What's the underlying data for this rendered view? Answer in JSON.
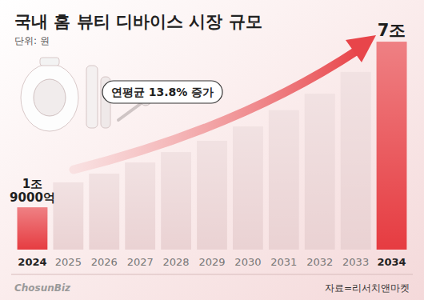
{
  "chart_data": {
    "type": "bar",
    "title": "국내 홈 뷰티 디바이스 시장 규모",
    "subtitle": "단위: 원",
    "annotation": "연평균 13.8% 증가",
    "categories": [
      "2024",
      "2025",
      "2026",
      "2027",
      "2028",
      "2029",
      "2030",
      "2031",
      "2032",
      "2033",
      "2034"
    ],
    "values": [
      1900000000000,
      2670000000000,
      2940000000000,
      3280000000000,
      3600000000000,
      3950000000000,
      4390000000000,
      4890000000000,
      5400000000000,
      6070000000000,
      7000000000000
    ],
    "value_labels": [
      "1조 9000억",
      null,
      null,
      null,
      null,
      null,
      null,
      null,
      null,
      null,
      "7조"
    ],
    "colors": [
      "#e63c41",
      "#ead2d3",
      "#ead2d3",
      "#ead2d3",
      "#ead2d3",
      "#ead2d3",
      "#ead2d3",
      "#ead2d3",
      "#ead2d3",
      "#ead2d3",
      "#e63c41"
    ],
    "ylim": [
      600000000000,
      7300000000000
    ],
    "data_labels": true,
    "tick_labels": "x",
    "grid": false,
    "source": "자료=리서치앤마켓",
    "logo": "ChosunBiz"
  }
}
